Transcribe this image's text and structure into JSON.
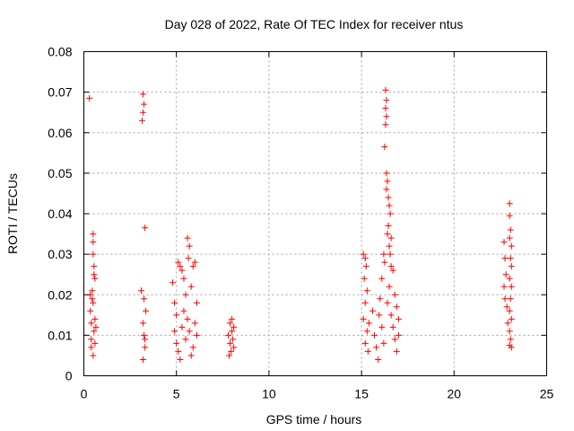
{
  "chart_data": {
    "type": "scatter",
    "title": "Day 028 of 2022, Rate Of TEC Index for receiver ntus",
    "xlabel": "GPS time / hours",
    "ylabel": "ROTI / TECUs",
    "xlim": [
      0,
      25
    ],
    "ylim": [
      0,
      0.08
    ],
    "x_ticks": [
      0,
      5,
      10,
      15,
      20,
      25
    ],
    "y_ticks": [
      0,
      0.01,
      0.02,
      0.03,
      0.04,
      0.05,
      0.06,
      0.07,
      0.08
    ],
    "x_tick_labels": [
      "0",
      "5",
      "10",
      "15",
      "20",
      "25"
    ],
    "y_tick_labels": [
      "0",
      "0.01",
      "0.02",
      "0.03",
      "0.04",
      "0.05",
      "0.06",
      "0.07",
      "0.08"
    ],
    "grid": true,
    "marker": "+",
    "color": "#ff0000",
    "series": [
      {
        "points": [
          [
            0.3,
            0.0685
          ],
          [
            0.4,
            0.013
          ],
          [
            0.4,
            0.009
          ],
          [
            0.45,
            0.019
          ],
          [
            0.5,
            0.035
          ],
          [
            0.5,
            0.033
          ],
          [
            0.5,
            0.03
          ],
          [
            0.55,
            0.027
          ],
          [
            0.55,
            0.025
          ],
          [
            0.6,
            0.024
          ],
          [
            0.45,
            0.021
          ],
          [
            0.35,
            0.016
          ],
          [
            0.4,
            0.007
          ],
          [
            0.5,
            0.005
          ],
          [
            0.55,
            0.011
          ],
          [
            0.6,
            0.014
          ],
          [
            0.5,
            0.018
          ],
          [
            0.35,
            0.02
          ],
          [
            0.6,
            0.008
          ],
          [
            0.65,
            0.012
          ],
          [
            3.1,
            0.021
          ],
          [
            3.2,
            0.0695
          ],
          [
            3.25,
            0.067
          ],
          [
            3.2,
            0.065
          ],
          [
            3.15,
            0.063
          ],
          [
            3.3,
            0.0365
          ],
          [
            3.25,
            0.019
          ],
          [
            3.2,
            0.013
          ],
          [
            3.25,
            0.01
          ],
          [
            3.3,
            0.007
          ],
          [
            3.2,
            0.004
          ],
          [
            3.35,
            0.016
          ],
          [
            3.3,
            0.009
          ],
          [
            4.8,
            0.023
          ],
          [
            4.9,
            0.018
          ],
          [
            5.0,
            0.015
          ],
          [
            5.1,
            0.028
          ],
          [
            5.2,
            0.027
          ],
          [
            5.3,
            0.026
          ],
          [
            5.4,
            0.024
          ],
          [
            5.5,
            0.02
          ],
          [
            5.6,
            0.034
          ],
          [
            5.7,
            0.032
          ],
          [
            5.65,
            0.029
          ],
          [
            5.8,
            0.022
          ],
          [
            5.9,
            0.027
          ],
          [
            6.0,
            0.028
          ],
          [
            6.1,
            0.018
          ],
          [
            5.0,
            0.008
          ],
          [
            5.1,
            0.006
          ],
          [
            5.3,
            0.012
          ],
          [
            5.5,
            0.009
          ],
          [
            5.7,
            0.011
          ],
          [
            5.9,
            0.007
          ],
          [
            6.0,
            0.013
          ],
          [
            6.1,
            0.01
          ],
          [
            5.2,
            0.004
          ],
          [
            5.4,
            0.016
          ],
          [
            5.6,
            0.014
          ],
          [
            5.8,
            0.005
          ],
          [
            4.9,
            0.011
          ],
          [
            7.8,
            0.01
          ],
          [
            7.9,
            0.013
          ],
          [
            8.0,
            0.014
          ],
          [
            8.0,
            0.011
          ],
          [
            7.9,
            0.008
          ],
          [
            8.1,
            0.007
          ],
          [
            7.85,
            0.005
          ],
          [
            8.05,
            0.009
          ],
          [
            8.1,
            0.012
          ],
          [
            7.95,
            0.006
          ],
          [
            15.1,
            0.03
          ],
          [
            15.2,
            0.029
          ],
          [
            15.25,
            0.027
          ],
          [
            15.15,
            0.024
          ],
          [
            15.3,
            0.021
          ],
          [
            15.2,
            0.018
          ],
          [
            15.1,
            0.014
          ],
          [
            15.3,
            0.011
          ],
          [
            15.2,
            0.008
          ],
          [
            15.35,
            0.006
          ],
          [
            15.4,
            0.013
          ],
          [
            15.6,
            0.016
          ],
          [
            15.7,
            0.01
          ],
          [
            15.8,
            0.007
          ],
          [
            15.9,
            0.004
          ],
          [
            16.0,
            0.019
          ],
          [
            16.1,
            0.024
          ],
          [
            16.2,
            0.03
          ],
          [
            16.25,
            0.028
          ],
          [
            16.3,
            0.0705
          ],
          [
            16.35,
            0.068
          ],
          [
            16.3,
            0.066
          ],
          [
            16.35,
            0.064
          ],
          [
            16.3,
            0.062
          ],
          [
            16.25,
            0.0565
          ],
          [
            16.35,
            0.05
          ],
          [
            16.4,
            0.048
          ],
          [
            16.35,
            0.046
          ],
          [
            16.45,
            0.044
          ],
          [
            16.5,
            0.042
          ],
          [
            16.55,
            0.04
          ],
          [
            16.45,
            0.037
          ],
          [
            16.4,
            0.035
          ],
          [
            16.5,
            0.032
          ],
          [
            16.6,
            0.034
          ],
          [
            16.55,
            0.03
          ],
          [
            16.6,
            0.027
          ],
          [
            16.7,
            0.026
          ],
          [
            16.5,
            0.022
          ],
          [
            16.4,
            0.018
          ],
          [
            16.6,
            0.015
          ],
          [
            16.7,
            0.012
          ],
          [
            16.8,
            0.009
          ],
          [
            16.9,
            0.006
          ],
          [
            17.0,
            0.014
          ],
          [
            17.0,
            0.01
          ],
          [
            16.2,
            0.008
          ],
          [
            16.1,
            0.012
          ],
          [
            15.95,
            0.015
          ],
          [
            16.8,
            0.02
          ],
          [
            16.9,
            0.017
          ],
          [
            22.7,
            0.033
          ],
          [
            22.75,
            0.029
          ],
          [
            22.8,
            0.025
          ],
          [
            22.7,
            0.022
          ],
          [
            22.75,
            0.019
          ],
          [
            22.85,
            0.017
          ],
          [
            22.9,
            0.013
          ],
          [
            23.0,
            0.0425
          ],
          [
            23.0,
            0.0395
          ],
          [
            23.05,
            0.036
          ],
          [
            23.0,
            0.034
          ],
          [
            23.1,
            0.032
          ],
          [
            23.05,
            0.029
          ],
          [
            23.1,
            0.027
          ],
          [
            23.0,
            0.024
          ],
          [
            23.1,
            0.022
          ],
          [
            23.05,
            0.019
          ],
          [
            23.0,
            0.016
          ],
          [
            23.1,
            0.014
          ],
          [
            23.0,
            0.011
          ],
          [
            23.05,
            0.009
          ],
          [
            23.1,
            0.007
          ],
          [
            23.0,
            0.0075
          ]
        ]
      }
    ]
  }
}
